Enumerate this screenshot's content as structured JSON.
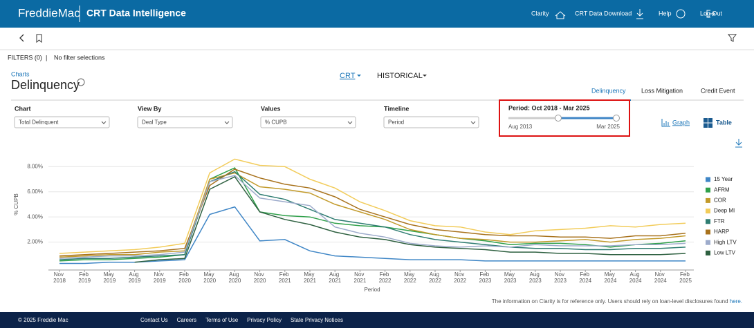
{
  "header": {
    "logo": "FreddieMac",
    "app_title": "CRT Data Intelligence",
    "nav": [
      "Clarity",
      "CRT Data Download",
      "Help",
      "Log Out"
    ]
  },
  "filters": {
    "label": "FILTERS (0)",
    "text": "No filter selections"
  },
  "section": {
    "breadcrumb": "Charts",
    "title": "Delinquency",
    "views": [
      "CRT",
      "HISTORICAL"
    ],
    "tabs": [
      "Delinquency",
      "Loss Mitigation",
      "Credit Event"
    ]
  },
  "controls": [
    {
      "label": "Chart",
      "value": "Total Delinquent"
    },
    {
      "label": "View By",
      "value": "Deal Type"
    },
    {
      "label": "Values",
      "value": "% CUPB"
    },
    {
      "label": "Timeline",
      "value": "Period"
    }
  ],
  "period": {
    "label": "Period: Oct 2018 - Mar 2025",
    "min": "Aug 2013",
    "max": "Mar 2025"
  },
  "view_toggle": [
    "Graph",
    "Table"
  ],
  "chart_data": {
    "type": "line",
    "x_label": "Period",
    "y_label": "% CUPB",
    "categories": [
      "Nov 2018",
      "Feb 2019",
      "May 2019",
      "Aug 2019",
      "Nov 2019",
      "Feb 2020",
      "May 2020",
      "Aug 2020",
      "Nov 2020",
      "Feb 2021",
      "May 2021",
      "Aug 2021",
      "Nov 2021",
      "Feb 2022",
      "May 2022",
      "Aug 2022",
      "Nov 2022",
      "Feb 2023",
      "May 2023",
      "Aug 2023",
      "Nov 2023",
      "Feb 2024",
      "May 2024",
      "Aug 2024",
      "Nov 2024",
      "Feb 2025"
    ],
    "ylim": [
      0,
      9.5
    ],
    "yticks": [
      {
        "value": 2,
        "label": "2.00%"
      },
      {
        "value": 4,
        "label": "4.00%"
      },
      {
        "value": 6,
        "label": "6.00%"
      },
      {
        "value": 8,
        "label": "8.00%"
      }
    ],
    "grid": true,
    "series": [
      {
        "name": "15 Year",
        "color": "#3f86c6",
        "values": [
          0.3,
          0.3,
          0.4,
          0.4,
          0.5,
          0.6,
          4.2,
          4.8,
          2.1,
          2.2,
          1.3,
          0.9,
          0.8,
          0.7,
          0.6,
          0.6,
          0.6,
          0.5,
          0.5,
          0.5,
          0.5,
          0.5,
          0.5,
          0.5,
          0.5,
          0.5
        ]
      },
      {
        "name": "AFRM",
        "color": "#2fa04a",
        "values": [
          0.5,
          0.6,
          0.6,
          0.7,
          0.8,
          1.0,
          7.0,
          7.9,
          4.4,
          4.1,
          4.0,
          3.5,
          3.3,
          3.2,
          2.9,
          2.6,
          2.3,
          2.1,
          1.8,
          1.9,
          1.9,
          1.8,
          1.6,
          1.8,
          1.9,
          2.1
        ]
      },
      {
        "name": "COR",
        "color": "#c29a2a",
        "values": [
          0.8,
          0.9,
          1.0,
          1.0,
          1.2,
          1.3,
          7.0,
          7.5,
          6.4,
          6.2,
          5.9,
          5.0,
          4.4,
          3.8,
          3.0,
          2.6,
          2.3,
          2.2,
          2.0,
          2.0,
          2.1,
          2.2,
          2.0,
          2.2,
          2.3,
          2.5
        ]
      },
      {
        "name": "Deep MI",
        "color": "#f2cc5a",
        "values": [
          1.1,
          1.2,
          1.3,
          1.4,
          1.6,
          1.9,
          7.5,
          8.6,
          8.1,
          8.0,
          7.0,
          6.3,
          5.2,
          4.5,
          3.7,
          3.3,
          3.2,
          2.8,
          2.6,
          2.9,
          3.0,
          3.1,
          3.3,
          3.2,
          3.4,
          3.5
        ]
      },
      {
        "name": "FTR",
        "color": "#2f7d72",
        "values": [
          0.6,
          0.7,
          0.7,
          0.8,
          0.9,
          1.0,
          6.8,
          7.6,
          5.8,
          5.4,
          4.6,
          3.8,
          3.5,
          3.2,
          2.6,
          2.2,
          2.0,
          1.8,
          1.6,
          1.5,
          1.5,
          1.4,
          1.4,
          1.5,
          1.5,
          1.6
        ]
      },
      {
        "name": "HARP",
        "color": "#a8721c",
        "values": [
          0.9,
          1.0,
          1.1,
          1.2,
          1.3,
          1.5,
          6.5,
          7.8,
          7.1,
          6.6,
          6.3,
          5.6,
          4.6,
          4.0,
          3.4,
          3.0,
          2.8,
          2.6,
          2.5,
          2.5,
          2.4,
          2.4,
          2.3,
          2.5,
          2.5,
          2.7
        ]
      },
      {
        "name": "High LTV",
        "color": "#9dabcb",
        "values": [
          0.7,
          0.8,
          0.9,
          0.9,
          1.0,
          1.2,
          6.8,
          7.3,
          5.5,
          5.2,
          4.9,
          3.2,
          2.7,
          2.4,
          1.9,
          1.7,
          1.6,
          1.7,
          1.6,
          1.8,
          1.7,
          1.7,
          1.7,
          1.8,
          1.8,
          1.9
        ]
      },
      {
        "name": "Low LTV",
        "color": "#2e6040",
        "values": [
          null,
          null,
          null,
          0.4,
          0.6,
          0.7,
          6.2,
          7.2,
          4.4,
          3.8,
          3.4,
          2.8,
          2.4,
          2.2,
          1.8,
          1.6,
          1.5,
          1.4,
          1.2,
          1.2,
          1.1,
          1.1,
          1.0,
          1.0,
          1.0,
          1.1
        ]
      }
    ]
  },
  "disclaimer": {
    "text": "The information on Clarity is for reference only. Users should rely on loan-level disclosures found",
    "link": "here."
  },
  "footer": {
    "copyright": "© 2025 Freddie Mac",
    "links": [
      "Contact Us",
      "Careers",
      "Terms of Use",
      "Privacy Policy",
      "State Privacy Notices"
    ]
  }
}
